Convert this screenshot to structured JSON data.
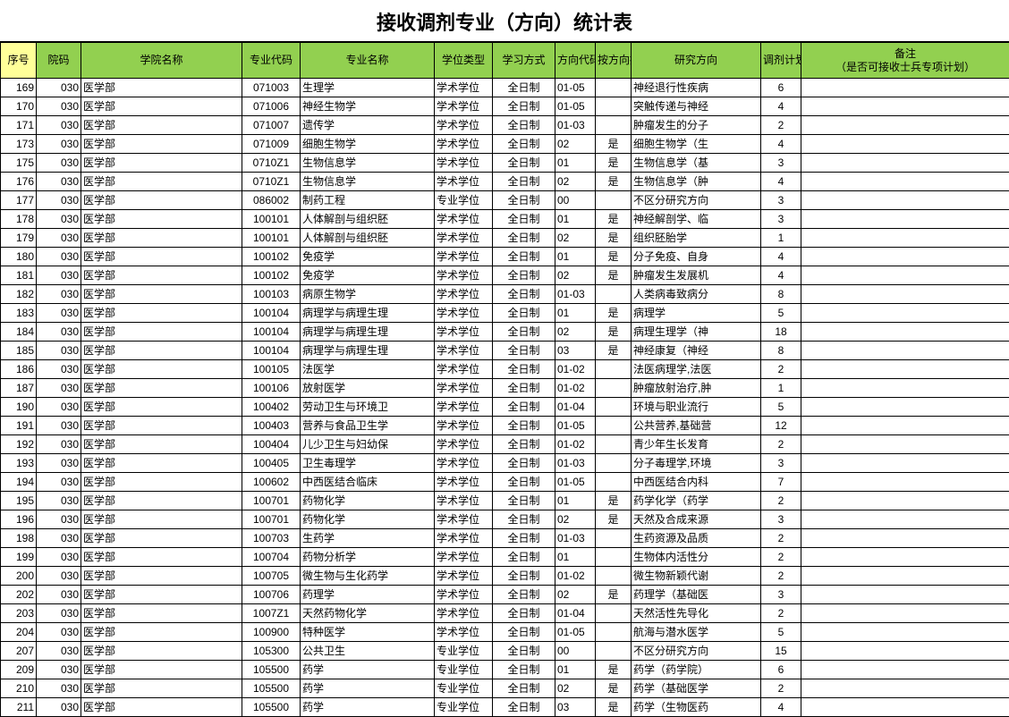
{
  "title": "接收调剂专业（方向）统计表",
  "columns": [
    {
      "key": "seq",
      "label": "序号",
      "cls": "c-seq"
    },
    {
      "key": "code",
      "label": "院码",
      "cls": "c-code"
    },
    {
      "key": "college",
      "label": "学院名称",
      "cls": "c-college"
    },
    {
      "key": "majorCode",
      "label": "专业代码",
      "cls": "c-major-code"
    },
    {
      "key": "majorName",
      "label": "专业名称",
      "cls": "c-major-name"
    },
    {
      "key": "degree",
      "label": "学位类型",
      "cls": "c-degree"
    },
    {
      "key": "study",
      "label": "学习方式",
      "cls": "c-study"
    },
    {
      "key": "dirCode",
      "label": "方向代码",
      "cls": "c-dircode"
    },
    {
      "key": "byDir",
      "label": "按方向招生",
      "cls": "c-bydir"
    },
    {
      "key": "dir",
      "label": "研究方向",
      "cls": "c-dir"
    },
    {
      "key": "plan",
      "label": "调剂计划",
      "cls": "c-plan"
    },
    {
      "key": "remark",
      "label": "备注\n（是否可接收士兵专项计划）",
      "cls": "c-remark"
    }
  ],
  "rows": [
    {
      "seq": "169",
      "code": "030",
      "college": "医学部",
      "majorCode": "071003",
      "majorName": "生理学",
      "degree": "学术学位",
      "study": "全日制",
      "dirCode": "01-05",
      "byDir": "",
      "dir": "神经退行性疾病",
      "plan": "6",
      "remark": ""
    },
    {
      "seq": "170",
      "code": "030",
      "college": "医学部",
      "majorCode": "071006",
      "majorName": "神经生物学",
      "degree": "学术学位",
      "study": "全日制",
      "dirCode": "01-05",
      "byDir": "",
      "dir": "突触传递与神经",
      "plan": "4",
      "remark": ""
    },
    {
      "seq": "171",
      "code": "030",
      "college": "医学部",
      "majorCode": "071007",
      "majorName": "遗传学",
      "degree": "学术学位",
      "study": "全日制",
      "dirCode": "01-03",
      "byDir": "",
      "dir": "肿瘤发生的分子",
      "plan": "2",
      "remark": ""
    },
    {
      "seq": "173",
      "code": "030",
      "college": "医学部",
      "majorCode": "071009",
      "majorName": "细胞生物学",
      "degree": "学术学位",
      "study": "全日制",
      "dirCode": "02",
      "byDir": "是",
      "dir": "细胞生物学（生",
      "plan": "4",
      "remark": ""
    },
    {
      "seq": "175",
      "code": "030",
      "college": "医学部",
      "majorCode": "0710Z1",
      "majorName": "生物信息学",
      "degree": "学术学位",
      "study": "全日制",
      "dirCode": "01",
      "byDir": "是",
      "dir": "生物信息学（基",
      "plan": "3",
      "remark": ""
    },
    {
      "seq": "176",
      "code": "030",
      "college": "医学部",
      "majorCode": "0710Z1",
      "majorName": "生物信息学",
      "degree": "学术学位",
      "study": "全日制",
      "dirCode": "02",
      "byDir": "是",
      "dir": "生物信息学（肿",
      "plan": "4",
      "remark": ""
    },
    {
      "seq": "177",
      "code": "030",
      "college": "医学部",
      "majorCode": "086002",
      "majorName": "制药工程",
      "degree": "专业学位",
      "study": "全日制",
      "dirCode": "00",
      "byDir": "",
      "dir": "不区分研究方向",
      "plan": "3",
      "remark": ""
    },
    {
      "seq": "178",
      "code": "030",
      "college": "医学部",
      "majorCode": "100101",
      "majorName": "人体解剖与组织胚",
      "degree": "学术学位",
      "study": "全日制",
      "dirCode": "01",
      "byDir": "是",
      "dir": "神经解剖学、临",
      "plan": "3",
      "remark": ""
    },
    {
      "seq": "179",
      "code": "030",
      "college": "医学部",
      "majorCode": "100101",
      "majorName": "人体解剖与组织胚",
      "degree": "学术学位",
      "study": "全日制",
      "dirCode": "02",
      "byDir": "是",
      "dir": "组织胚胎学",
      "plan": "1",
      "remark": ""
    },
    {
      "seq": "180",
      "code": "030",
      "college": "医学部",
      "majorCode": "100102",
      "majorName": "免疫学",
      "degree": "学术学位",
      "study": "全日制",
      "dirCode": "01",
      "byDir": "是",
      "dir": "分子免疫、自身",
      "plan": "4",
      "remark": ""
    },
    {
      "seq": "181",
      "code": "030",
      "college": "医学部",
      "majorCode": "100102",
      "majorName": "免疫学",
      "degree": "学术学位",
      "study": "全日制",
      "dirCode": "02",
      "byDir": "是",
      "dir": "肿瘤发生发展机",
      "plan": "4",
      "remark": ""
    },
    {
      "seq": "182",
      "code": "030",
      "college": "医学部",
      "majorCode": "100103",
      "majorName": "病原生物学",
      "degree": "学术学位",
      "study": "全日制",
      "dirCode": "01-03",
      "byDir": "",
      "dir": "人类病毒致病分",
      "plan": "8",
      "remark": ""
    },
    {
      "seq": "183",
      "code": "030",
      "college": "医学部",
      "majorCode": "100104",
      "majorName": "病理学与病理生理",
      "degree": "学术学位",
      "study": "全日制",
      "dirCode": "01",
      "byDir": "是",
      "dir": "病理学",
      "plan": "5",
      "remark": ""
    },
    {
      "seq": "184",
      "code": "030",
      "college": "医学部",
      "majorCode": "100104",
      "majorName": "病理学与病理生理",
      "degree": "学术学位",
      "study": "全日制",
      "dirCode": "02",
      "byDir": "是",
      "dir": "病理生理学（神",
      "plan": "18",
      "remark": ""
    },
    {
      "seq": "185",
      "code": "030",
      "college": "医学部",
      "majorCode": "100104",
      "majorName": "病理学与病理生理",
      "degree": "学术学位",
      "study": "全日制",
      "dirCode": "03",
      "byDir": "是",
      "dir": "神经康复（神经",
      "plan": "8",
      "remark": ""
    },
    {
      "seq": "186",
      "code": "030",
      "college": "医学部",
      "majorCode": "100105",
      "majorName": "法医学",
      "degree": "学术学位",
      "study": "全日制",
      "dirCode": "01-02",
      "byDir": "",
      "dir": "法医病理学,法医",
      "plan": "2",
      "remark": ""
    },
    {
      "seq": "187",
      "code": "030",
      "college": "医学部",
      "majorCode": "100106",
      "majorName": "放射医学",
      "degree": "学术学位",
      "study": "全日制",
      "dirCode": "01-02",
      "byDir": "",
      "dir": "肿瘤放射治疗,肿",
      "plan": "1",
      "remark": ""
    },
    {
      "seq": "190",
      "code": "030",
      "college": "医学部",
      "majorCode": "100402",
      "majorName": "劳动卫生与环境卫",
      "degree": "学术学位",
      "study": "全日制",
      "dirCode": "01-04",
      "byDir": "",
      "dir": "环境与职业流行",
      "plan": "5",
      "remark": ""
    },
    {
      "seq": "191",
      "code": "030",
      "college": "医学部",
      "majorCode": "100403",
      "majorName": "营养与食品卫生学",
      "degree": "学术学位",
      "study": "全日制",
      "dirCode": "01-05",
      "byDir": "",
      "dir": "公共营养,基础营",
      "plan": "12",
      "remark": ""
    },
    {
      "seq": "192",
      "code": "030",
      "college": "医学部",
      "majorCode": "100404",
      "majorName": "儿少卫生与妇幼保",
      "degree": "学术学位",
      "study": "全日制",
      "dirCode": "01-02",
      "byDir": "",
      "dir": "青少年生长发育",
      "plan": "2",
      "remark": ""
    },
    {
      "seq": "193",
      "code": "030",
      "college": "医学部",
      "majorCode": "100405",
      "majorName": "卫生毒理学",
      "degree": "学术学位",
      "study": "全日制",
      "dirCode": "01-03",
      "byDir": "",
      "dir": "分子毒理学,环境",
      "plan": "3",
      "remark": ""
    },
    {
      "seq": "194",
      "code": "030",
      "college": "医学部",
      "majorCode": "100602",
      "majorName": "中西医结合临床",
      "degree": "学术学位",
      "study": "全日制",
      "dirCode": "01-05",
      "byDir": "",
      "dir": "中西医结合内科",
      "plan": "7",
      "remark": ""
    },
    {
      "seq": "195",
      "code": "030",
      "college": "医学部",
      "majorCode": "100701",
      "majorName": "药物化学",
      "degree": "学术学位",
      "study": "全日制",
      "dirCode": "01",
      "byDir": "是",
      "dir": "药学化学（药学",
      "plan": "2",
      "remark": ""
    },
    {
      "seq": "196",
      "code": "030",
      "college": "医学部",
      "majorCode": "100701",
      "majorName": "药物化学",
      "degree": "学术学位",
      "study": "全日制",
      "dirCode": "02",
      "byDir": "是",
      "dir": "天然及合成来源",
      "plan": "3",
      "remark": ""
    },
    {
      "seq": "198",
      "code": "030",
      "college": "医学部",
      "majorCode": "100703",
      "majorName": "生药学",
      "degree": "学术学位",
      "study": "全日制",
      "dirCode": "01-03",
      "byDir": "",
      "dir": "生药资源及品质",
      "plan": "2",
      "remark": ""
    },
    {
      "seq": "199",
      "code": "030",
      "college": "医学部",
      "majorCode": "100704",
      "majorName": "药物分析学",
      "degree": "学术学位",
      "study": "全日制",
      "dirCode": "01",
      "byDir": "",
      "dir": "生物体内活性分",
      "plan": "2",
      "remark": ""
    },
    {
      "seq": "200",
      "code": "030",
      "college": "医学部",
      "majorCode": "100705",
      "majorName": "微生物与生化药学",
      "degree": "学术学位",
      "study": "全日制",
      "dirCode": "01-02",
      "byDir": "",
      "dir": "微生物新颖代谢",
      "plan": "2",
      "remark": ""
    },
    {
      "seq": "202",
      "code": "030",
      "college": "医学部",
      "majorCode": "100706",
      "majorName": "药理学",
      "degree": "学术学位",
      "study": "全日制",
      "dirCode": "02",
      "byDir": "是",
      "dir": "药理学（基础医",
      "plan": "3",
      "remark": ""
    },
    {
      "seq": "203",
      "code": "030",
      "college": "医学部",
      "majorCode": "1007Z1",
      "majorName": "天然药物化学",
      "degree": "学术学位",
      "study": "全日制",
      "dirCode": "01-04",
      "byDir": "",
      "dir": "天然活性先导化",
      "plan": "2",
      "remark": ""
    },
    {
      "seq": "204",
      "code": "030",
      "college": "医学部",
      "majorCode": "100900",
      "majorName": "特种医学",
      "degree": "学术学位",
      "study": "全日制",
      "dirCode": "01-05",
      "byDir": "",
      "dir": "航海与潜水医学",
      "plan": "5",
      "remark": ""
    },
    {
      "seq": "207",
      "code": "030",
      "college": "医学部",
      "majorCode": "105300",
      "majorName": "公共卫生",
      "degree": "专业学位",
      "study": "全日制",
      "dirCode": "00",
      "byDir": "",
      "dir": "不区分研究方向",
      "plan": "15",
      "remark": ""
    },
    {
      "seq": "209",
      "code": "030",
      "college": "医学部",
      "majorCode": "105500",
      "majorName": "药学",
      "degree": "专业学位",
      "study": "全日制",
      "dirCode": "01",
      "byDir": "是",
      "dir": "药学（药学院）",
      "plan": "6",
      "remark": ""
    },
    {
      "seq": "210",
      "code": "030",
      "college": "医学部",
      "majorCode": "105500",
      "majorName": "药学",
      "degree": "专业学位",
      "study": "全日制",
      "dirCode": "02",
      "byDir": "是",
      "dir": "药学（基础医学",
      "plan": "2",
      "remark": ""
    },
    {
      "seq": "211",
      "code": "030",
      "college": "医学部",
      "majorCode": "105500",
      "majorName": "药学",
      "degree": "专业学位",
      "study": "全日制",
      "dirCode": "03",
      "byDir": "是",
      "dir": "药学（生物医药",
      "plan": "4",
      "remark": ""
    }
  ],
  "colors": {
    "headerBg": "#92d050",
    "seqHeaderBg": "#ffff99",
    "border": "#000000",
    "background": "#ffffff"
  },
  "fontSizes": {
    "title": 22,
    "header": 12,
    "cell": 12
  }
}
